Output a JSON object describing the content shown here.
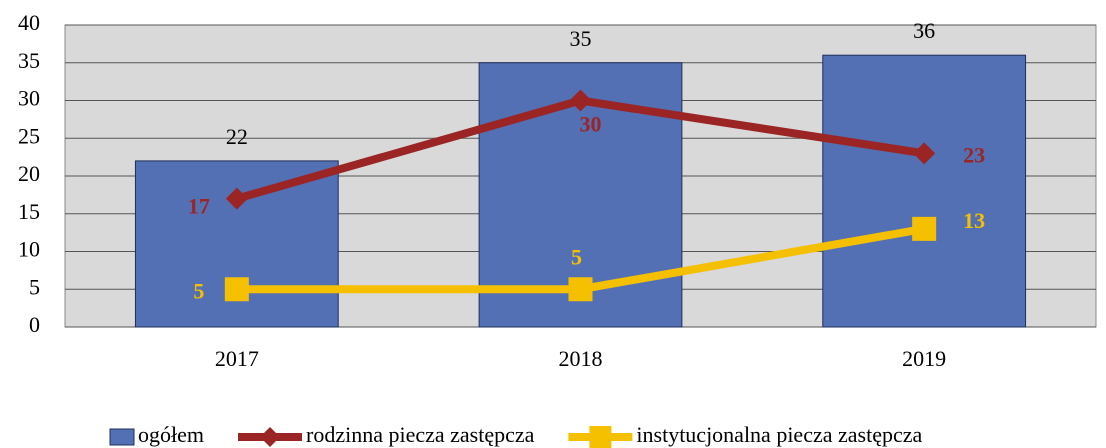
{
  "chart_data": {
    "type": "bar",
    "categories": [
      "2017",
      "2018",
      "2019"
    ],
    "series": [
      {
        "name": "ogółem",
        "type": "bar",
        "color": "#5470b4",
        "values": [
          22,
          35,
          36
        ]
      },
      {
        "name": "rodzinna piecza zastępcza",
        "type": "line",
        "marker": "diamond",
        "color": "#9b2424",
        "values": [
          17,
          30,
          23
        ]
      },
      {
        "name": "instytucjonalna piecza zastępcza",
        "type": "line",
        "marker": "square",
        "color": "#f5c000",
        "values": [
          5,
          5,
          13
        ]
      }
    ],
    "ylim": [
      0,
      40
    ],
    "yticks": [
      0,
      5,
      10,
      15,
      20,
      25,
      30,
      35,
      40
    ],
    "grid": true,
    "legend": "bottom"
  }
}
